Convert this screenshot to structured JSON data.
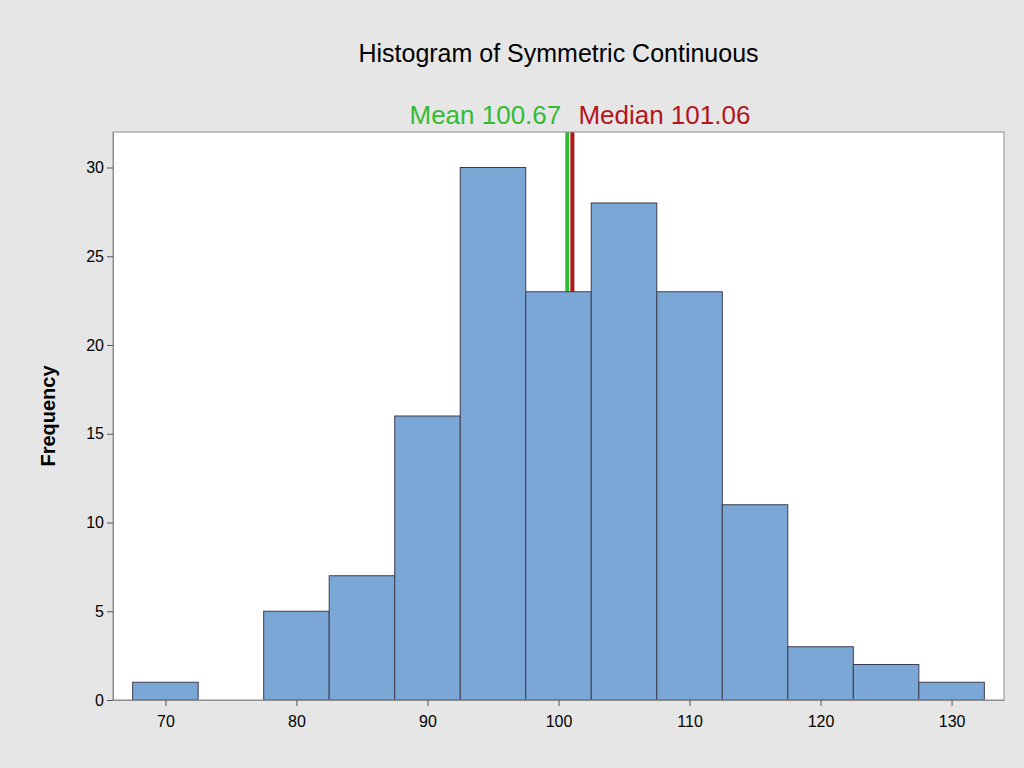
{
  "chart_data": {
    "type": "histogram",
    "title": "Histogram of Symmetric Continuous",
    "y_label": "Frequency",
    "bins": [
      67.5,
      72.5,
      77.5,
      82.5,
      87.5,
      92.5,
      97.5,
      102.5,
      107.5,
      112.5,
      117.5,
      122.5,
      127.5,
      132.5
    ],
    "values": [
      1,
      0,
      5,
      7,
      16,
      30,
      23,
      28,
      23,
      11,
      3,
      2,
      1
    ],
    "color": "#7ba7d7",
    "xlim": [
      66,
      134
    ],
    "xticks": [
      70,
      80,
      90,
      100,
      110,
      120,
      130
    ],
    "ylim": [
      0,
      32
    ],
    "yticks": [
      0,
      5,
      10,
      15,
      20,
      25,
      30
    ],
    "reference_lines": [
      {
        "text": "Mean 100.67",
        "value": 100.67,
        "color": "#33bb33"
      },
      {
        "text": "Median 101.06",
        "value": 101.06,
        "color": "#b3151d"
      }
    ]
  }
}
